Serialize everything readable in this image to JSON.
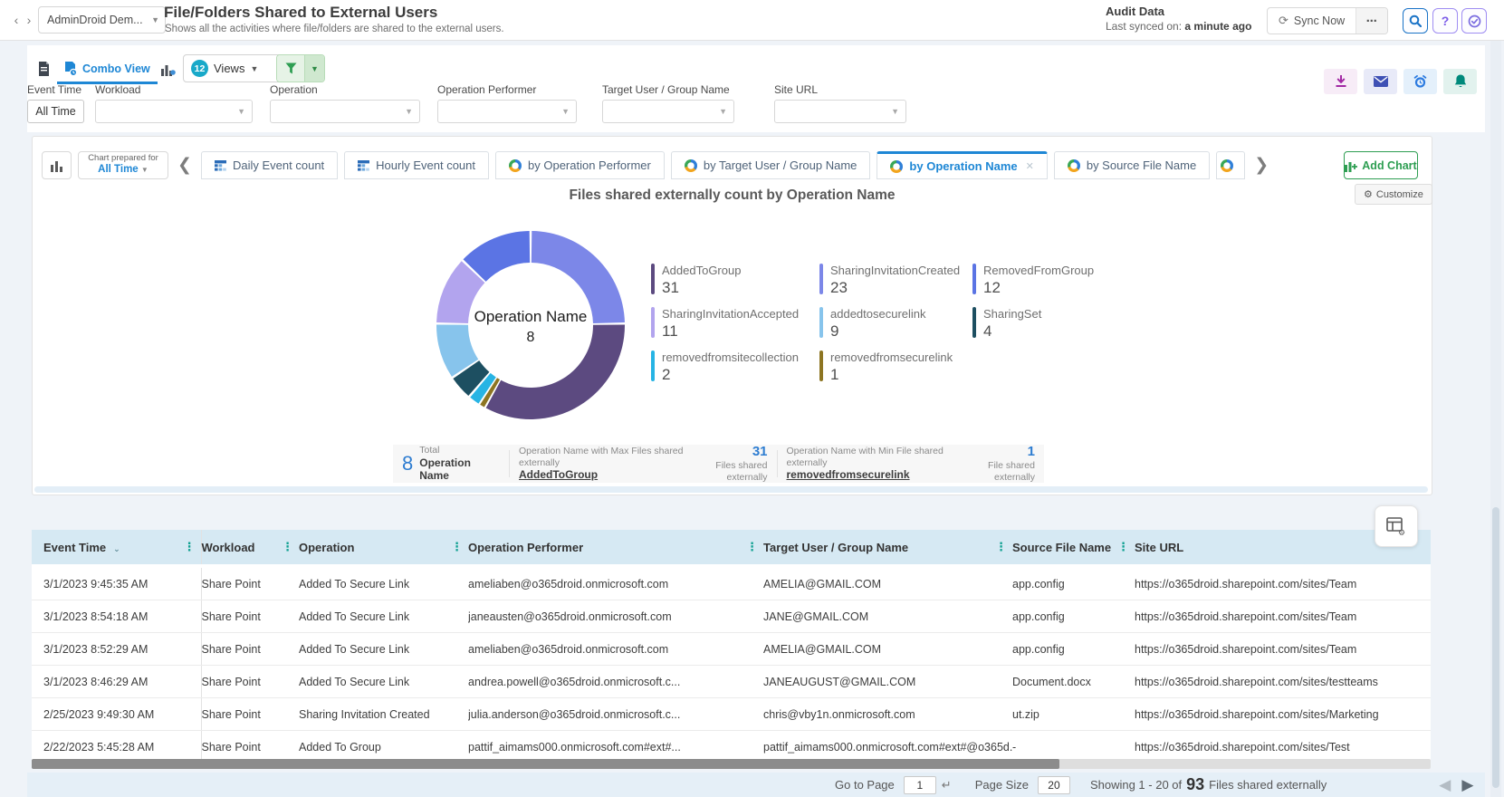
{
  "header": {
    "workspace": "AdminDroid Dem...",
    "title": "File/Folders Shared to External Users",
    "subtitle": "Shows all the activities where file/folders are shared to the external users.",
    "audit_label": "Audit Data",
    "synced_prefix": "Last synced on: ",
    "synced_value": "a minute ago",
    "sync_button": "Sync Now"
  },
  "toolbar": {
    "combo_view_label": "Combo View",
    "views_count": "12",
    "views_label": "Views"
  },
  "filters": [
    {
      "label": "Event Time",
      "value": "All Time"
    },
    {
      "label": "Workload",
      "value": ""
    },
    {
      "label": "Operation",
      "value": ""
    },
    {
      "label": "Operation Performer",
      "value": ""
    },
    {
      "label": "Target User / Group Name",
      "value": ""
    },
    {
      "label": "Site URL",
      "value": ""
    }
  ],
  "chart_tabs": {
    "prepared_line1": "Chart prepared for",
    "prepared_line2": "All Time",
    "tabs": [
      {
        "label": "Daily Event count",
        "icon": "grid",
        "active": false
      },
      {
        "label": "Hourly Event count",
        "icon": "grid",
        "active": false
      },
      {
        "label": "by Operation Performer",
        "icon": "donut",
        "active": false
      },
      {
        "label": "by Target User / Group Name",
        "icon": "donut",
        "active": false
      },
      {
        "label": "by Operation Name",
        "icon": "donut",
        "active": true
      },
      {
        "label": "by Source File Name",
        "icon": "donut",
        "active": false
      },
      {
        "label": "",
        "icon": "donut",
        "active": false,
        "partial": true
      }
    ],
    "add_chart": "Add Chart",
    "customize": "Customize"
  },
  "chart_data": {
    "type": "donut",
    "title": "Files shared externally count by Operation Name",
    "center_label": "Operation Name",
    "center_value": "8",
    "total": 93,
    "legend_position": "right",
    "series": [
      {
        "name": "AddedToGroup",
        "value": 31,
        "color": "#5c4a80"
      },
      {
        "name": "SharingInvitationCreated",
        "value": 23,
        "color": "#7c87e8"
      },
      {
        "name": "RemovedFromGroup",
        "value": 12,
        "color": "#5b74e4"
      },
      {
        "name": "SharingInvitationAccepted",
        "value": 11,
        "color": "#b2a4ee"
      },
      {
        "name": "addedtosecurelink",
        "value": 9,
        "color": "#87c4ec"
      },
      {
        "name": "SharingSet",
        "value": 4,
        "color": "#1d4f61"
      },
      {
        "name": "removedfromsitecollection",
        "value": 2,
        "color": "#27b4e4"
      },
      {
        "name": "removedfromsecurelink",
        "value": 1,
        "color": "#8d7522"
      }
    ],
    "draw_order": [
      1,
      0,
      7,
      6,
      5,
      4,
      3,
      2
    ]
  },
  "summary": {
    "total_value": "8",
    "total_label1": "Total",
    "total_label2": "Operation Name",
    "max_label": "Operation Name with Max Files shared externally",
    "max_name": "AddedToGroup",
    "max_value": "31",
    "max_unit": "Files shared externally",
    "min_label": "Operation Name with Min File shared externally",
    "min_name": "removedfromsecurelink",
    "min_value": "1",
    "min_unit": "File shared externally"
  },
  "table": {
    "columns": [
      "Event Time",
      "Workload",
      "Operation",
      "Operation Performer",
      "Target User / Group Name",
      "Source File Name",
      "Site URL"
    ],
    "rows": [
      [
        "3/1/2023 9:45:35 AM",
        "Share Point",
        "Added To Secure Link",
        "ameliaben@o365droid.onmicrosoft.com",
        "AMELIA@GMAIL.COM",
        "app.config",
        "https://o365droid.sharepoint.com/sites/Team"
      ],
      [
        "3/1/2023 8:54:18 AM",
        "Share Point",
        "Added To Secure Link",
        "janeausten@o365droid.onmicrosoft.com",
        "JANE@GMAIL.COM",
        "app.config",
        "https://o365droid.sharepoint.com/sites/Team"
      ],
      [
        "3/1/2023 8:52:29 AM",
        "Share Point",
        "Added To Secure Link",
        "ameliaben@o365droid.onmicrosoft.com",
        "AMELIA@GMAIL.COM",
        "app.config",
        "https://o365droid.sharepoint.com/sites/Team"
      ],
      [
        "3/1/2023 8:46:29 AM",
        "Share Point",
        "Added To Secure Link",
        "andrea.powell@o365droid.onmicrosoft.c...",
        "JANEAUGUST@GMAIL.COM",
        "Document.docx",
        "https://o365droid.sharepoint.com/sites/testteams"
      ],
      [
        "2/25/2023 9:49:30 AM",
        "Share Point",
        "Sharing Invitation Created",
        "julia.anderson@o365droid.onmicrosoft.c...",
        "chris@vby1n.onmicrosoft.com",
        "ut.zip",
        "https://o365droid.sharepoint.com/sites/Marketing"
      ],
      [
        "2/22/2023 5:45:28 AM",
        "Share Point",
        "Added To Group",
        "pattif_aimams000.onmicrosoft.com#ext#...",
        "pattif_aimams000.onmicrosoft.com#ext#@o365d...",
        "-",
        "https://o365droid.sharepoint.com/sites/Test"
      ]
    ]
  },
  "footer": {
    "goto_label": "Go to Page",
    "goto_value": "1",
    "page_size_label": "Page Size",
    "page_size_value": "20",
    "showing_prefix": "Showing 1 - 20 of",
    "total_count": "93",
    "showing_suffix": "Files shared externally"
  }
}
